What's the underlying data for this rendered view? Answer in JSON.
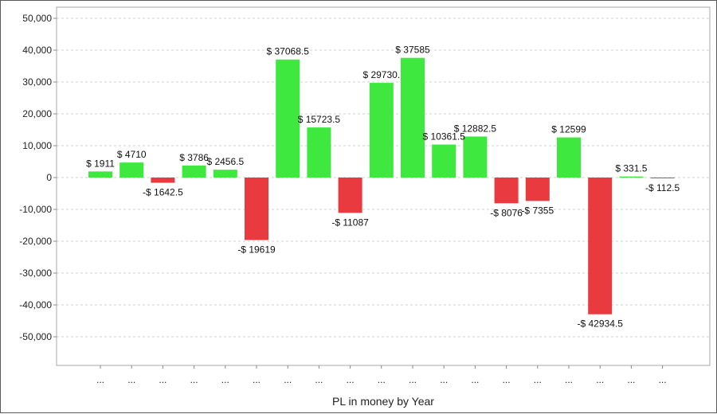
{
  "chart_data": {
    "type": "bar",
    "title": "",
    "xlabel": "PL in money by Year",
    "ylabel": "",
    "ylim": [
      -59000,
      53500
    ],
    "yticks": [
      50000,
      40000,
      30000,
      20000,
      10000,
      0,
      -10000,
      -20000,
      -30000,
      -40000,
      -50000
    ],
    "ytick_labels": [
      "50,000",
      "40,000",
      "30,000",
      "20,000",
      "10,000",
      "0",
      "-10,000",
      "-20,000",
      "-30,000",
      "-40,000",
      "-50,000"
    ],
    "grid": true,
    "legend": "none",
    "categories": [
      "...",
      "...",
      "...",
      "...",
      "...",
      "...",
      "...",
      "...",
      "...",
      "...",
      "...",
      "...",
      "...",
      "...",
      "...",
      "...",
      "...",
      "...",
      "..."
    ],
    "values": [
      1911,
      4710,
      -1642.5,
      3786,
      2456.5,
      -19619,
      37068.5,
      15723.5,
      -11087,
      29730,
      37585,
      10361.5,
      12882.5,
      -8076,
      -7355,
      12599,
      -42934.5,
      331.5,
      -112.5
    ],
    "data_labels": [
      "$ 1911",
      "$ 4710",
      "-$ 1642.5",
      "$ 3786",
      "$ 2456.5",
      "-$ 19619",
      "$ 37068.5",
      "$ 15723.5",
      "-$ 11087",
      "$ 29730.",
      "$ 37585",
      "$ 10361.5",
      "$ 12882.5",
      "-$ 8076",
      "-$ 7355",
      "$ 12599",
      "-$ 42934.5",
      "$ 331.5",
      "-$ 112.5"
    ],
    "colors": {
      "positive": "#3ee83e",
      "negative": "#e83a3f"
    }
  }
}
